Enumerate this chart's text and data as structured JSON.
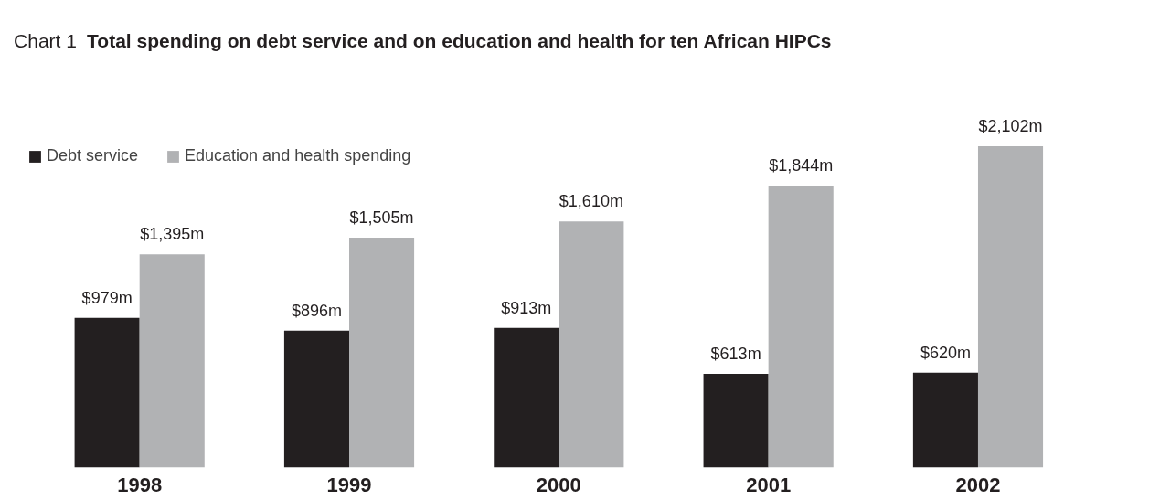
{
  "chart_data": {
    "type": "bar",
    "subtitle": "Chart 1",
    "title": "Total spending on debt service and on education and health for ten African HIPCs",
    "categories": [
      "1998",
      "1999",
      "2000",
      "2001",
      "2002"
    ],
    "series": [
      {
        "name": "Debt service",
        "color": "#231f20",
        "values": [
          979,
          896,
          913,
          613,
          620
        ],
        "value_labels": [
          "$979m",
          "$896m",
          "$913m",
          "$613m",
          "$620m"
        ]
      },
      {
        "name": "Education and health spending",
        "color": "#b1b2b4",
        "values": [
          1395,
          1505,
          1610,
          1844,
          2102
        ],
        "value_labels": [
          "$1,395m",
          "$1,505m",
          "$1,610m",
          "$1,844m",
          "$2,102m"
        ]
      }
    ],
    "legend": "top left",
    "grid": false
  }
}
